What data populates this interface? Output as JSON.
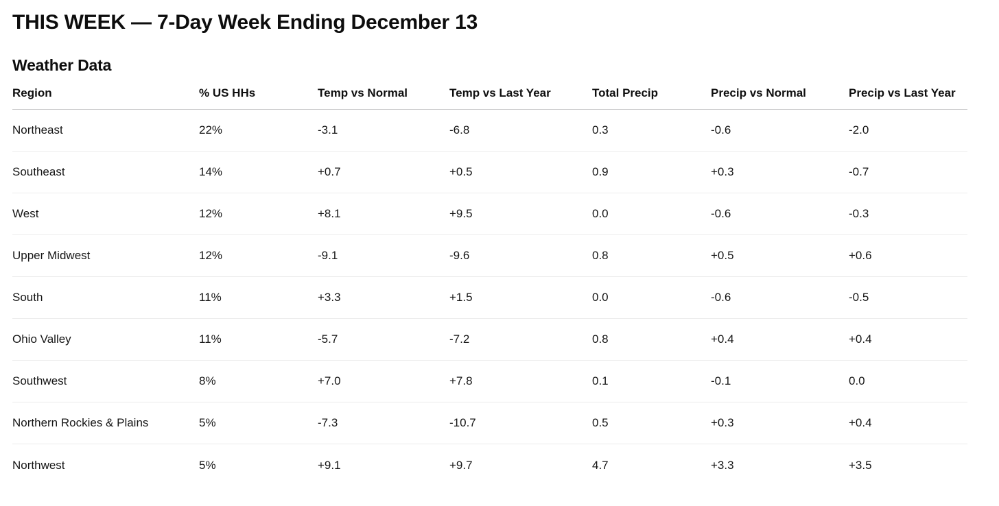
{
  "title": "THIS WEEK — 7-Day Week Ending December 13",
  "section": "Weather Data",
  "table": {
    "columns": [
      "Region",
      "% US HHs",
      "Temp vs Normal",
      "Temp vs Last Year",
      "Total Precip",
      "Precip vs Normal",
      "Precip vs Last Year"
    ],
    "rows": [
      [
        "Northeast",
        "22%",
        "-3.1",
        "-6.8",
        "0.3",
        "-0.6",
        "-2.0"
      ],
      [
        "Southeast",
        "14%",
        "+0.7",
        "+0.5",
        "0.9",
        "+0.3",
        "-0.7"
      ],
      [
        "West",
        "12%",
        "+8.1",
        "+9.5",
        "0.0",
        "-0.6",
        "-0.3"
      ],
      [
        "Upper Midwest",
        "12%",
        "-9.1",
        "-9.6",
        "0.8",
        "+0.5",
        "+0.6"
      ],
      [
        "South",
        "11%",
        "+3.3",
        "+1.5",
        "0.0",
        "-0.6",
        "-0.5"
      ],
      [
        "Ohio Valley",
        "11%",
        "-5.7",
        "-7.2",
        "0.8",
        "+0.4",
        "+0.4"
      ],
      [
        "Southwest",
        "8%",
        "+7.0",
        "+7.8",
        "0.1",
        "-0.1",
        "0.0"
      ],
      [
        "Northern Rockies & Plains",
        "5%",
        "-7.3",
        "-10.7",
        "0.5",
        "+0.3",
        "+0.4"
      ],
      [
        "Northwest",
        "5%",
        "+9.1",
        "+9.7",
        "4.7",
        "+3.3",
        "+3.5"
      ]
    ]
  },
  "chart_data": {
    "type": "table",
    "title": "Weather Data — 7-Day Week Ending December 13",
    "categories": [
      "Northeast",
      "Southeast",
      "West",
      "Upper Midwest",
      "South",
      "Ohio Valley",
      "Southwest",
      "Northern Rockies & Plains",
      "Northwest"
    ],
    "series": [
      {
        "name": "% US HHs",
        "values": [
          22,
          14,
          12,
          12,
          11,
          11,
          8,
          5,
          5
        ]
      },
      {
        "name": "Temp vs Normal",
        "values": [
          -3.1,
          0.7,
          8.1,
          -9.1,
          3.3,
          -5.7,
          7.0,
          -7.3,
          9.1
        ]
      },
      {
        "name": "Temp vs Last Year",
        "values": [
          -6.8,
          0.5,
          9.5,
          -9.6,
          1.5,
          -7.2,
          7.8,
          -10.7,
          9.7
        ]
      },
      {
        "name": "Total Precip",
        "values": [
          0.3,
          0.9,
          0.0,
          0.8,
          0.0,
          0.8,
          0.1,
          0.5,
          4.7
        ]
      },
      {
        "name": "Precip vs Normal",
        "values": [
          -0.6,
          0.3,
          -0.6,
          0.5,
          -0.6,
          0.4,
          -0.1,
          0.3,
          3.3
        ]
      },
      {
        "name": "Precip vs Last Year",
        "values": [
          -2.0,
          -0.7,
          -0.3,
          0.6,
          -0.5,
          0.4,
          0.0,
          0.4,
          3.5
        ]
      }
    ]
  },
  "colors": {
    "background": "#ffffff",
    "text": "#131313",
    "header_divider": "#c6c6c8",
    "row_divider": "#ececec"
  }
}
